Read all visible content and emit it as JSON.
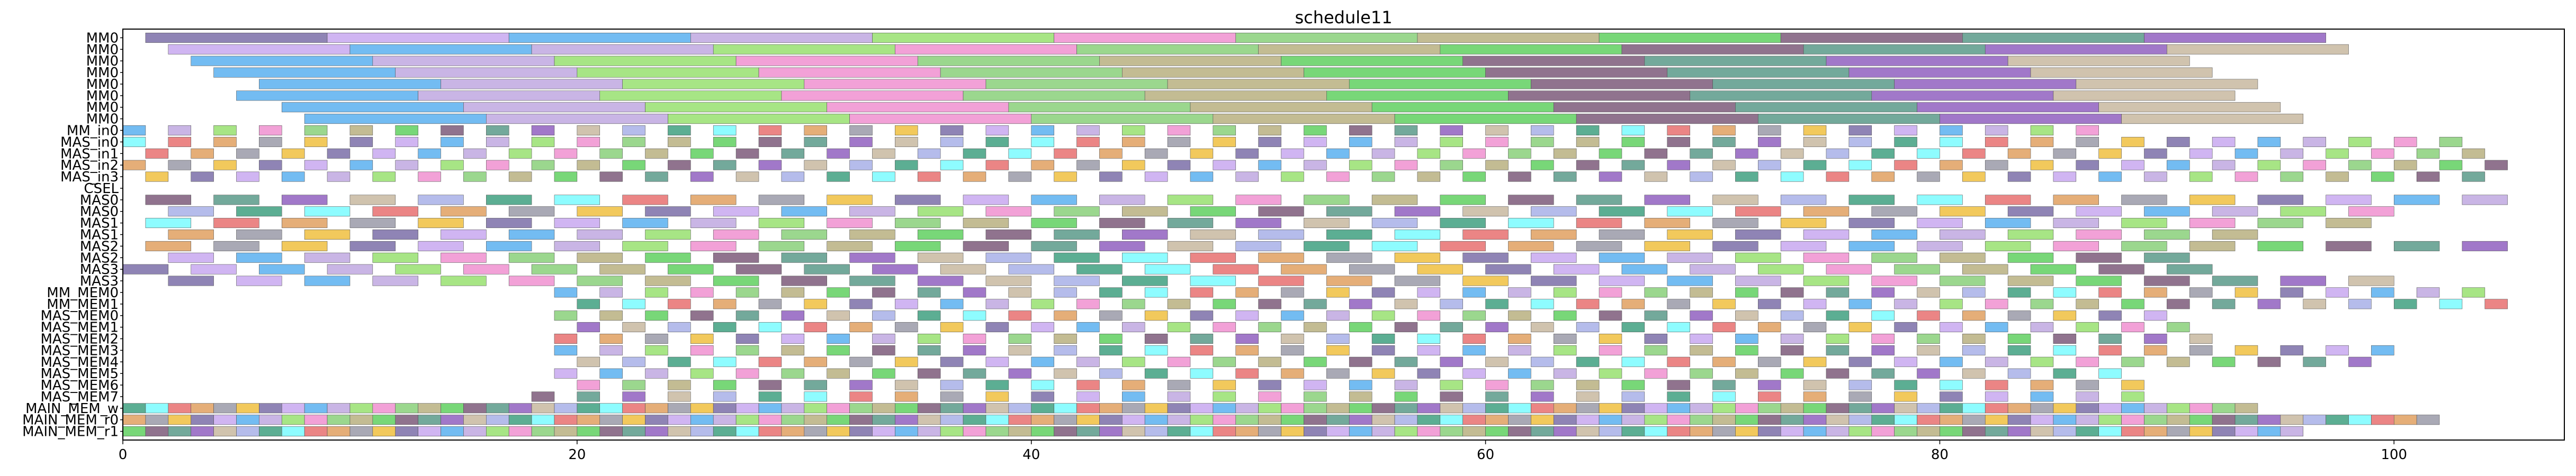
{
  "chart_data": {
    "type": "gantt",
    "title": "schedule11",
    "xlabel": "",
    "ylabel": "",
    "xlim": [
      0,
      107.5
    ],
    "x_ticks": [
      0,
      20,
      40,
      60,
      80,
      100
    ],
    "grid": false,
    "rows": [
      "MM0",
      "MM0",
      "MM0",
      "MM0",
      "MM0",
      "MM0",
      "MM0",
      "MM0",
      "MM_in0",
      "MAS_in0",
      "MAS_in1",
      "MAS_in2",
      "MAS_in3",
      "CSEL",
      "MAS0",
      "MAS0",
      "MAS1",
      "MAS1",
      "MAS2",
      "MAS2",
      "MAS3",
      "MAS3",
      "MM_MEM0",
      "MM_MEM1",
      "MAS_MEM0",
      "MAS_MEM1",
      "MAS_MEM2",
      "MAS_MEM3",
      "MAS_MEM4",
      "MAS_MEM5",
      "MAS_MEM6",
      "MAS_MEM7",
      "MAIN_MEM_w",
      "MAIN_MEM_r0",
      "MAIN_MEM_r1"
    ],
    "rows_spans": [
      {
        "start": 1,
        "end": 97,
        "step": 8,
        "width": 8
      },
      {
        "start": 2,
        "end": 98,
        "step": 8,
        "width": 8
      },
      {
        "start": 3,
        "end": 97,
        "step": 8,
        "width": 8
      },
      {
        "start": 4,
        "end": 92,
        "step": 8,
        "width": 8
      },
      {
        "start": 6,
        "end": 94,
        "step": 8,
        "width": 8
      },
      {
        "start": 5,
        "end": 93,
        "step": 8,
        "width": 8
      },
      {
        "start": 7,
        "end": 95,
        "step": 8,
        "width": 8
      },
      {
        "start": 8,
        "end": 96,
        "step": 8,
        "width": 8
      },
      {
        "start": 0,
        "end": 88,
        "step": 2,
        "width": 1
      },
      {
        "start": 0,
        "end": 104,
        "step": 2,
        "width": 1
      },
      {
        "start": 1,
        "end": 105,
        "step": 2,
        "width": 1
      },
      {
        "start": 0,
        "end": 106,
        "step": 2,
        "width": 1
      },
      {
        "start": 1,
        "end": 105,
        "step": 2,
        "width": 1
      },
      {
        "start": 0,
        "end": 0,
        "step": 1,
        "width": 0
      },
      {
        "start": 1,
        "end": 105,
        "step": 3,
        "width": 2
      },
      {
        "start": 2,
        "end": 100,
        "step": 3,
        "width": 2
      },
      {
        "start": 1,
        "end": 99,
        "step": 3,
        "width": 2
      },
      {
        "start": 2,
        "end": 96,
        "step": 3,
        "width": 2
      },
      {
        "start": 1,
        "end": 107,
        "step": 3,
        "width": 2
      },
      {
        "start": 2,
        "end": 92,
        "step": 3,
        "width": 2
      },
      {
        "start": 0,
        "end": 94,
        "step": 3,
        "width": 2
      },
      {
        "start": 2,
        "end": 102,
        "step": 3,
        "width": 2
      },
      {
        "start": 19,
        "end": 104,
        "step": 2,
        "width": 1
      },
      {
        "start": 20,
        "end": 105,
        "step": 2,
        "width": 1
      },
      {
        "start": 19,
        "end": 90,
        "step": 2,
        "width": 1
      },
      {
        "start": 20,
        "end": 91,
        "step": 2,
        "width": 1
      },
      {
        "start": 19,
        "end": 92,
        "step": 2,
        "width": 1
      },
      {
        "start": 19,
        "end": 100,
        "step": 2,
        "width": 1
      },
      {
        "start": 20,
        "end": 99,
        "step": 2,
        "width": 1
      },
      {
        "start": 19,
        "end": 88,
        "step": 2,
        "width": 1
      },
      {
        "start": 20,
        "end": 89,
        "step": 2,
        "width": 1
      },
      {
        "start": 18,
        "end": 89,
        "step": 2,
        "width": 1
      },
      {
        "start": 0,
        "end": 94,
        "step": 1,
        "width": 1
      },
      {
        "start": 0,
        "end": 102,
        "step": 1,
        "width": 1
      },
      {
        "start": 0,
        "end": 96,
        "step": 1,
        "width": 1
      }
    ],
    "colors": [
      "#7b6fa8",
      "#c0a8e0",
      "#8ad07a",
      "#7d5a7a",
      "#c8b8a0",
      "#7afcff",
      "#9a9aa8",
      "#c8a8f0",
      "#98e070",
      "#b8b080",
      "#5a9a8a",
      "#a8b0e8",
      "#e87070",
      "#f0c040",
      "#5ab0f0",
      "#f090d0",
      "#60d060",
      "#9060c0",
      "#40a080",
      "#e0a060"
    ]
  }
}
